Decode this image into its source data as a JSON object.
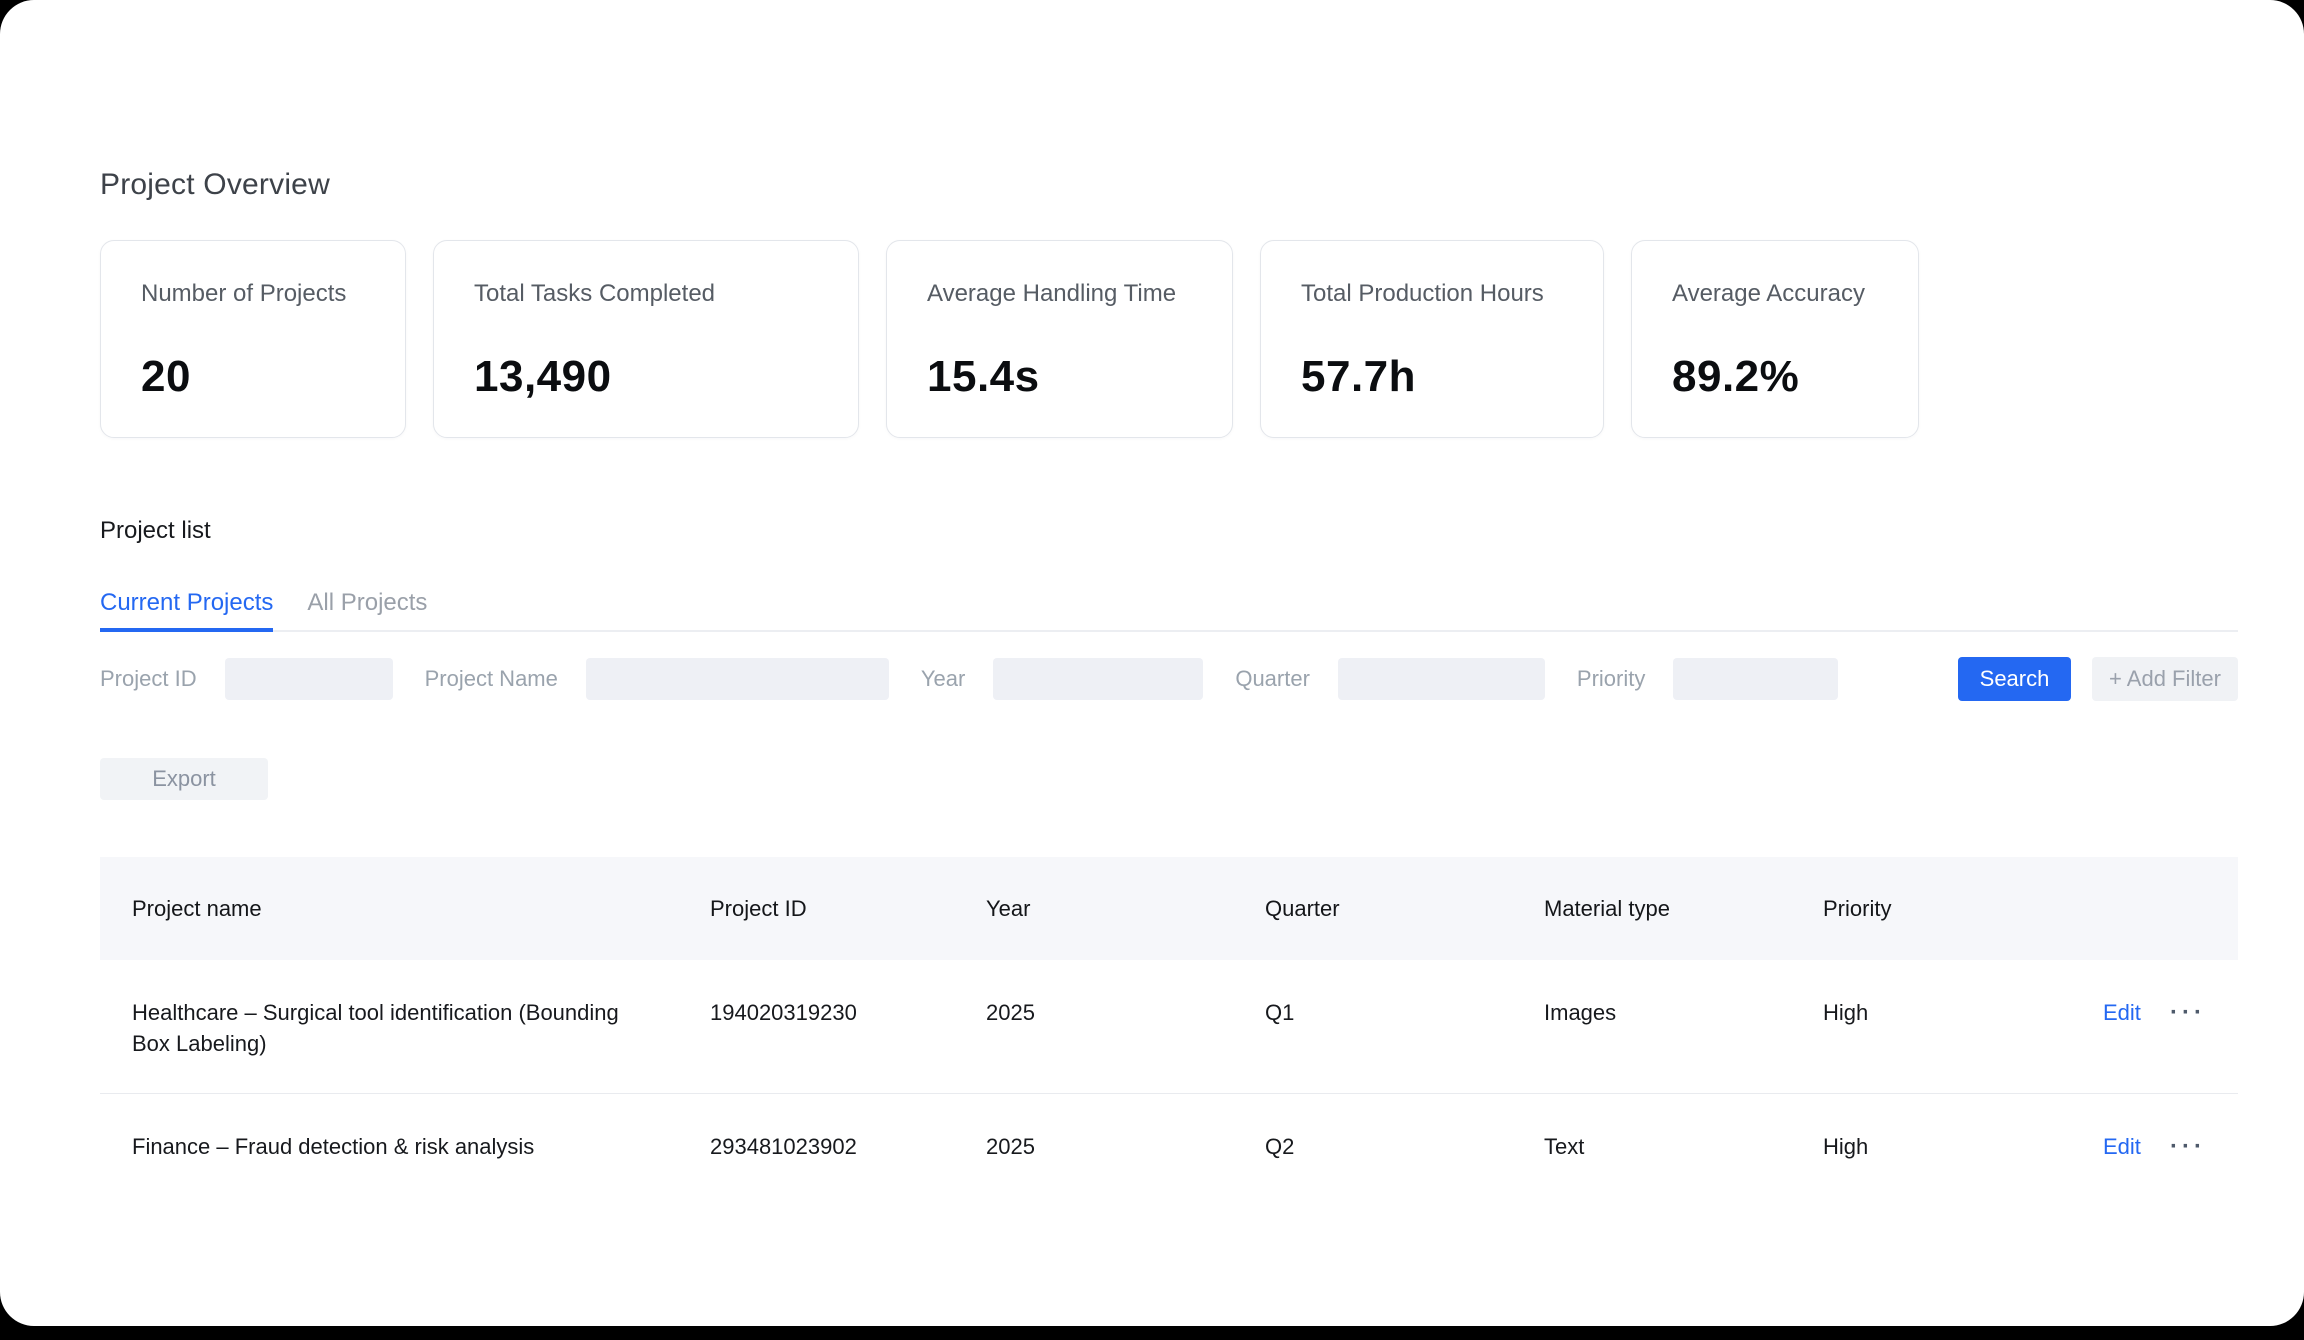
{
  "page": {
    "title": "Project Overview"
  },
  "stats": [
    {
      "label": "Number of Projects",
      "value": "20"
    },
    {
      "label": "Total Tasks Completed",
      "value": "13,490"
    },
    {
      "label": "Average Handling Time",
      "value": "15.4s"
    },
    {
      "label": "Total Production Hours",
      "value": "57.7h"
    },
    {
      "label": "Average Accuracy",
      "value": "89.2%"
    }
  ],
  "project_list": {
    "heading": "Project list",
    "tabs": [
      {
        "label": "Current Projects",
        "active": true
      },
      {
        "label": "All Projects",
        "active": false
      }
    ],
    "filters": [
      {
        "label": "Project ID",
        "value": ""
      },
      {
        "label": "Project Name",
        "value": ""
      },
      {
        "label": "Year",
        "value": ""
      },
      {
        "label": "Quarter",
        "value": ""
      },
      {
        "label": "Priority",
        "value": ""
      }
    ],
    "search_label": "Search",
    "add_filter_label": "+ Add Filter",
    "export_label": "Export",
    "table": {
      "columns": [
        "Project name",
        "Project ID",
        "Year",
        "Quarter",
        "Material type",
        "Priority"
      ],
      "rows": [
        {
          "name": "Healthcare – Surgical tool identification (Bounding Box Labeling)",
          "id": "194020319230",
          "year": "2025",
          "quarter": "Q1",
          "material": "Images",
          "priority": "High",
          "edit_label": "Edit",
          "more_glyph": "···"
        },
        {
          "name": "Finance – Fraud detection & risk analysis",
          "id": "293481023902",
          "year": "2025",
          "quarter": "Q2",
          "material": "Text",
          "priority": "High",
          "edit_label": "Edit",
          "more_glyph": "···"
        }
      ]
    }
  },
  "colors": {
    "accent": "#2468f2",
    "input_bg": "#eef0f5",
    "header_bg": "#f6f7fa"
  }
}
